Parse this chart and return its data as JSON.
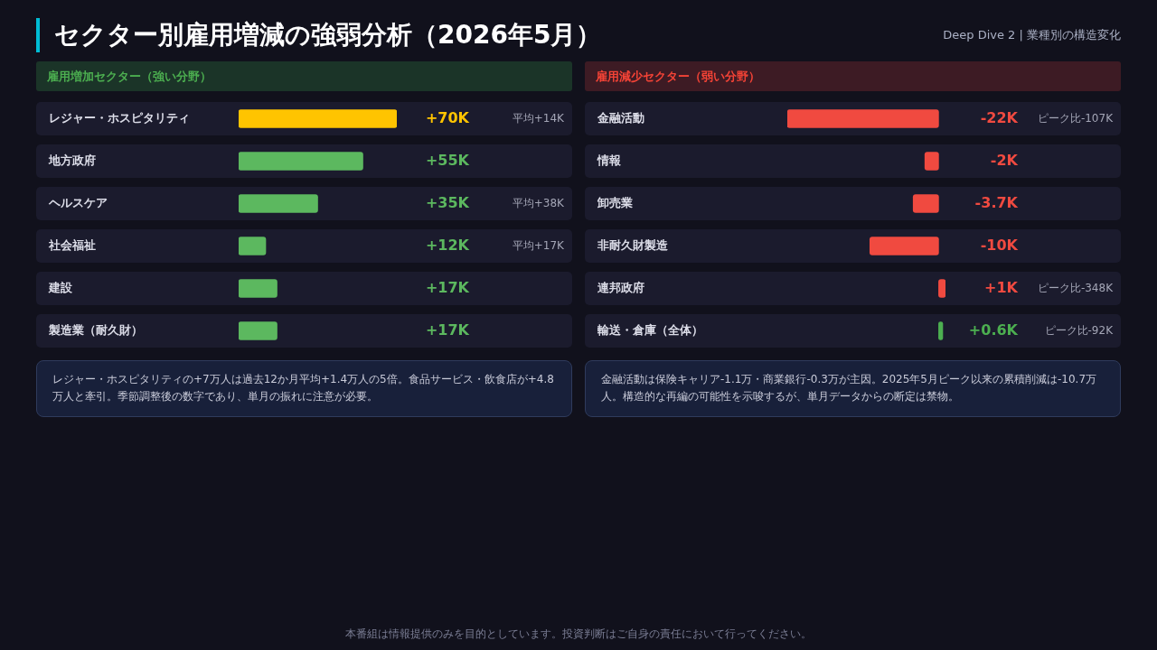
{
  "chart_data": [
    {
      "type": "other",
      "title": "セクター別雇用増減の強弱分析（2026年5月）",
      "subtitle": "Deep Dive 2 | 業種別の構造変化",
      "annotations": [
        "本番組は情報提供のみを目的としています。投資判断はご自身の責任において行ってください。"
      ]
    },
    {
      "type": "bar",
      "orientation": "horizontal",
      "title": "雇用増加セクター（強い分野）",
      "categories": [
        "レジャー・ホスピタリティ",
        "地方政府",
        "ヘルスケア",
        "社会福祉",
        "建設",
        "製造業（耐久財）"
      ],
      "values": [
        70,
        55,
        35,
        12,
        17,
        17
      ],
      "value_labels": [
        "+70K",
        "+55K",
        "+35K",
        "+12K",
        "+17K",
        "+17K"
      ],
      "colors": [
        "#ffc400",
        "#5cb85f",
        "#5cb85f",
        "#5cb85f",
        "#5cb85f",
        "#5cb85f"
      ],
      "annotations": [
        "平均+14K",
        "平均+38K",
        "平均+17K",
        "レジャー・ホスピタリティの+7万人は過去12か月平均+1.4万人の5倍。食品サービス・飲食店が+4.8万人と牽引。季節調整後の数字であり、単月の振れに注意が必要。"
      ]
    },
    {
      "type": "bar",
      "orientation": "horizontal",
      "title": "雇用減少セクター（弱い分野）",
      "categories": [
        "金融活動",
        "情報",
        "卸売業",
        "非耐久財製造",
        "連邦政府",
        "輸送・倉庫（全体）"
      ],
      "values": [
        -22,
        -2,
        -3.7,
        -10,
        1,
        0.6
      ],
      "value_labels": [
        "-22K",
        "-2K",
        "-3.7K",
        "-10K",
        "+1K",
        "+0.6K"
      ],
      "colors": [
        "#f04a40",
        "#f04a40",
        "#f04a40",
        "#f04a40",
        "#f04a40",
        "#4caf50"
      ],
      "annotations": [
        "ピーク比-107K",
        "ピーク比-348K",
        "ピーク比-92K",
        "金融活動は保険キャリア-1.1万・商業銀行-0.3万が主因。2025年5月ピーク以来の累積削減は-10.7万人。構造的な再編の可能性を示唆するが、単月データからの断定は禁物。"
      ]
    }
  ]
}
